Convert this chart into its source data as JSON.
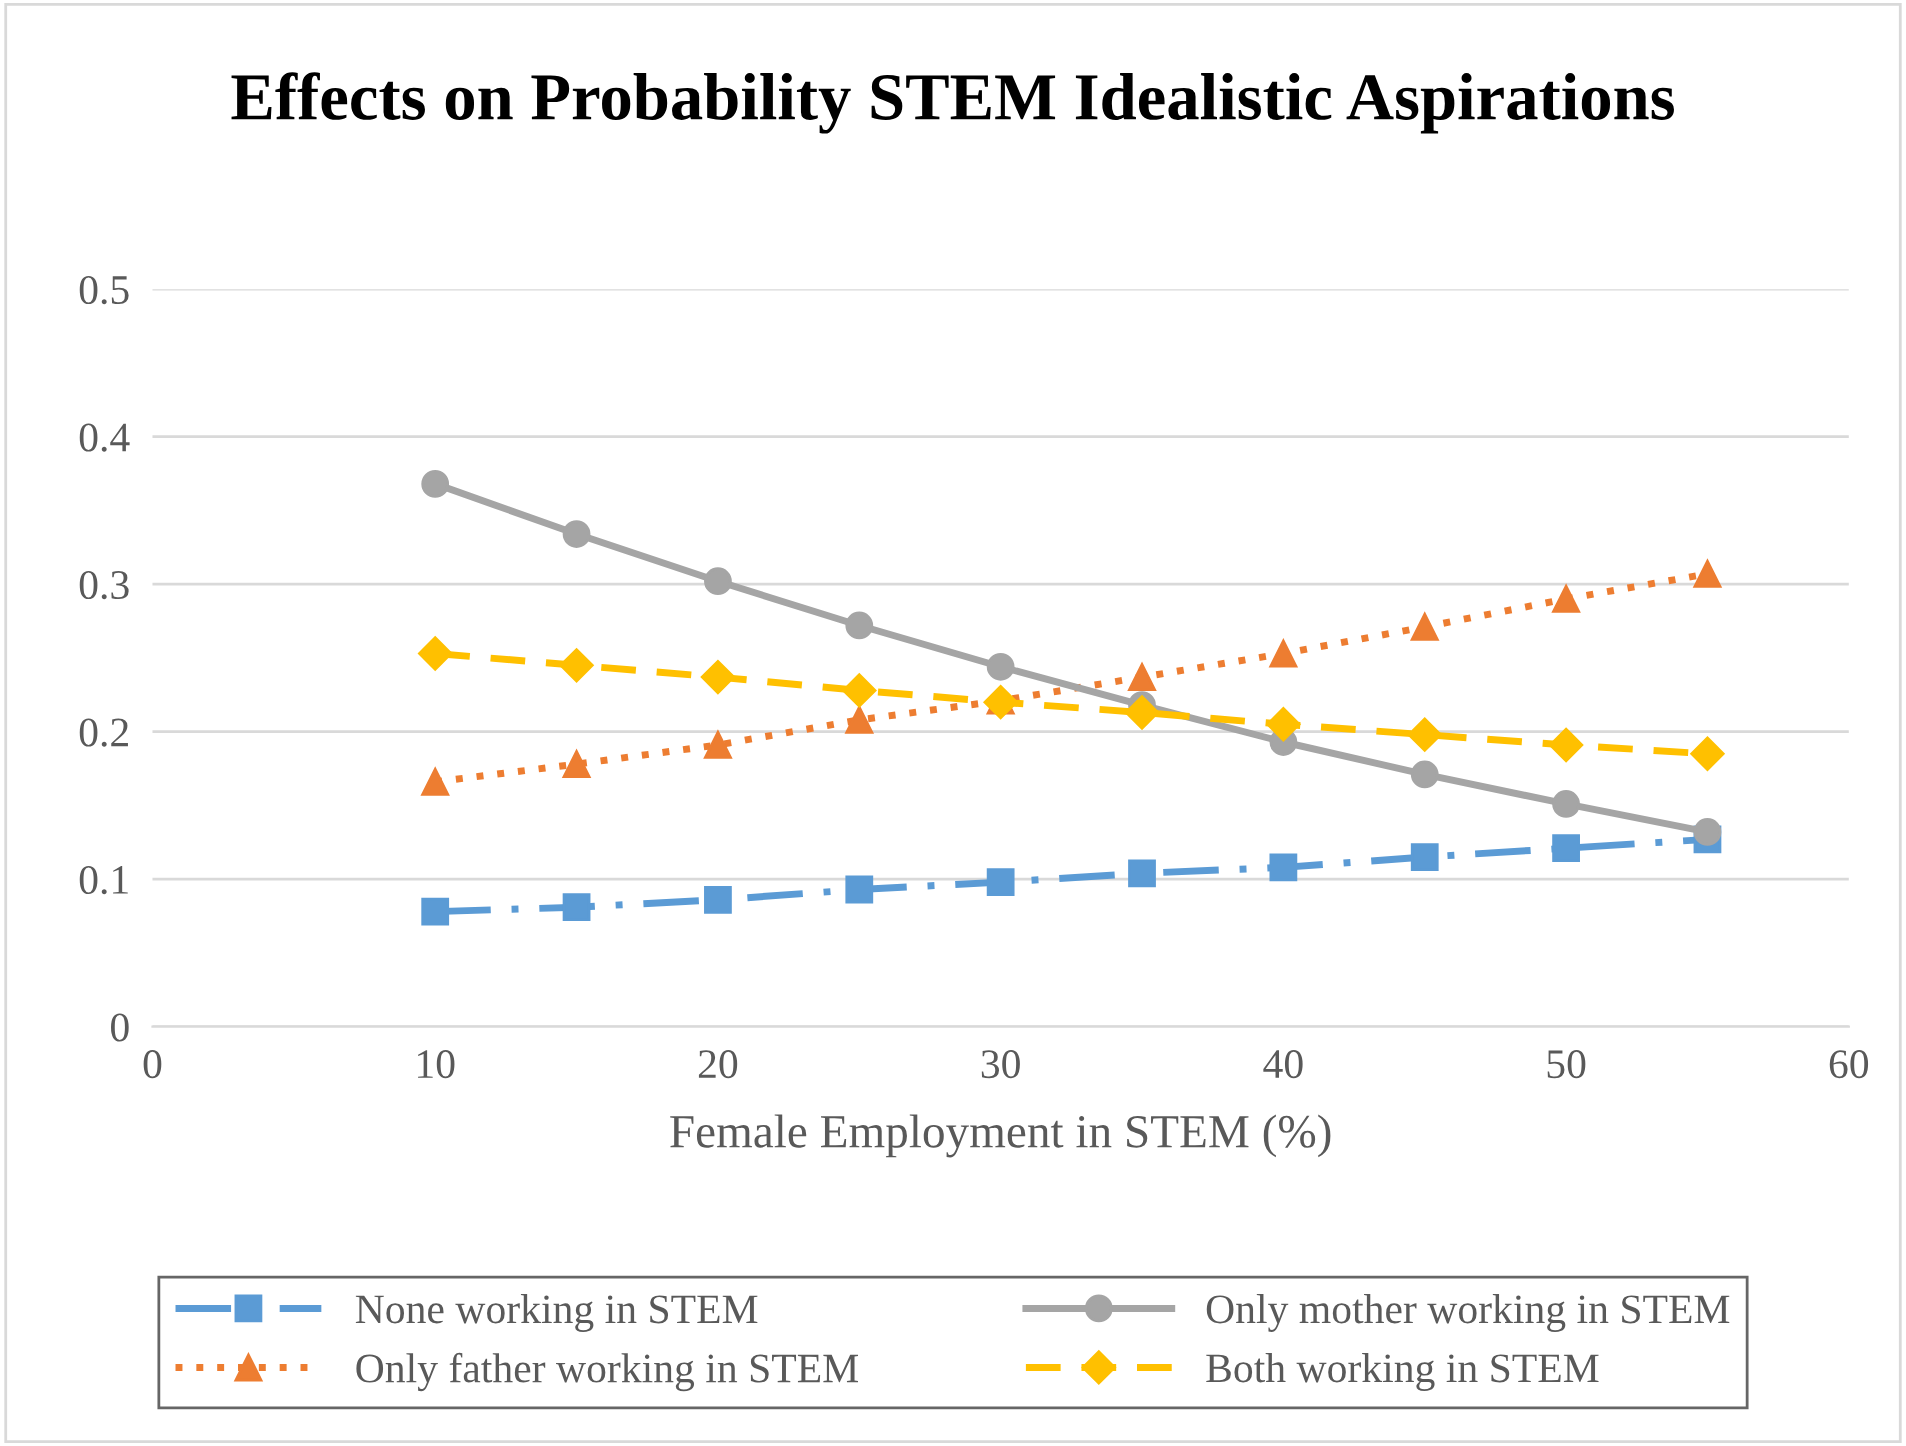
{
  "chart_data": {
    "type": "line",
    "title": "Effects on Probability STEM Idealistic Aspirations",
    "xlabel": "Female Employment in STEM (%)",
    "x": [
      10,
      15,
      20,
      25,
      30,
      35,
      40,
      45,
      50,
      55
    ],
    "xlim": [
      0,
      60
    ],
    "xticks": [
      0,
      10,
      20,
      30,
      40,
      50,
      60
    ],
    "ylim": [
      0,
      0.5
    ],
    "yticks": [
      0,
      0.1,
      0.2,
      0.3,
      0.4,
      0.5
    ],
    "grid": "y",
    "legend": "bottom",
    "series": [
      {
        "name": "None working in STEM",
        "color": "#5b9bd5",
        "marker": "square",
        "line_style": "dashdot",
        "values": [
          0.078,
          0.081,
          0.086,
          0.093,
          0.098,
          0.104,
          0.108,
          0.115,
          0.121,
          0.127
        ]
      },
      {
        "name": "Only father working in STEM",
        "color": "#ed7d31",
        "marker": "triangle",
        "line_style": "dotted",
        "values": [
          0.166,
          0.178,
          0.191,
          0.208,
          0.221,
          0.237,
          0.253,
          0.271,
          0.29,
          0.307
        ]
      },
      {
        "name": "Only mother working in STEM",
        "color": "#a5a5a5",
        "marker": "circle",
        "line_style": "solid",
        "values": [
          0.368,
          0.334,
          0.302,
          0.272,
          0.244,
          0.218,
          0.193,
          0.171,
          0.151,
          0.132
        ]
      },
      {
        "name": "Both working in STEM",
        "color": "#ffc000",
        "marker": "diamond",
        "line_style": "dashed",
        "values": [
          0.253,
          0.245,
          0.237,
          0.228,
          0.22,
          0.213,
          0.205,
          0.198,
          0.191,
          0.185
        ]
      }
    ]
  }
}
